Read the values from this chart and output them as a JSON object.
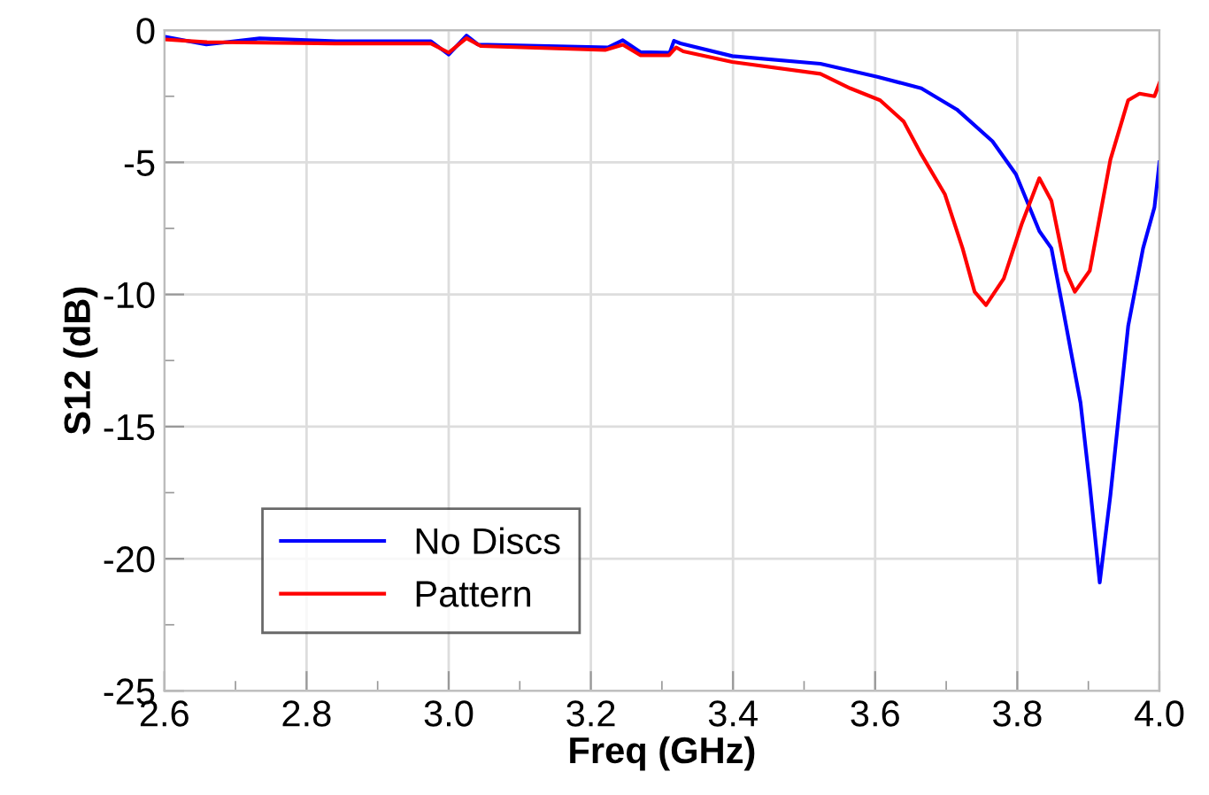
{
  "chart_data": {
    "type": "line",
    "xlabel": "Freq (GHz)",
    "ylabel": "S12 (dB)",
    "xlim": [
      2.6,
      4.0
    ],
    "ylim": [
      -25,
      0
    ],
    "xticks": [
      {
        "value": 2.6,
        "label": "2.6"
      },
      {
        "value": 2.8,
        "label": "2.8"
      },
      {
        "value": 3.0,
        "label": "3.0"
      },
      {
        "value": 3.2,
        "label": "3.2"
      },
      {
        "value": 3.4,
        "label": "3.4"
      },
      {
        "value": 3.6,
        "label": "3.6"
      },
      {
        "value": 3.8,
        "label": "3.8"
      },
      {
        "value": 4.0,
        "label": "4.0"
      }
    ],
    "yticks": [
      -25,
      -20,
      -15,
      -10,
      -5,
      0
    ],
    "grid": true,
    "legend": "bottom left",
    "marker": "none",
    "line_style": "solid",
    "series": [
      {
        "name": "No Discs",
        "color": "#0000ff",
        "x": [
          2.601,
          2.659,
          2.734,
          2.842,
          2.975,
          3.0,
          3.025,
          3.041,
          3.224,
          3.245,
          3.27,
          3.311,
          3.317,
          3.326,
          3.399,
          3.523,
          3.603,
          3.665,
          3.715,
          3.765,
          3.798,
          3.831,
          3.848,
          3.864,
          3.889,
          3.902,
          3.916,
          3.931,
          3.956,
          3.977,
          3.993,
          4.0
        ],
        "values": [
          -0.25,
          -0.54,
          -0.31,
          -0.42,
          -0.42,
          -0.92,
          -0.2,
          -0.54,
          -0.65,
          -0.38,
          -0.83,
          -0.85,
          -0.4,
          -0.5,
          -0.98,
          -1.27,
          -1.76,
          -2.2,
          -3.0,
          -4.2,
          -5.45,
          -7.6,
          -8.25,
          -10.5,
          -14.1,
          -17.2,
          -20.9,
          -17.6,
          -11.2,
          -8.25,
          -6.7,
          -5.0
        ]
      },
      {
        "name": "Pattern",
        "color": "#ff0000",
        "x": [
          2.6,
          2.66,
          2.84,
          2.975,
          3.0,
          3.025,
          3.045,
          3.22,
          3.245,
          3.27,
          3.31,
          3.32,
          3.33,
          3.399,
          3.523,
          3.565,
          3.607,
          3.64,
          3.665,
          3.698,
          3.723,
          3.74,
          3.756,
          3.781,
          3.806,
          3.831,
          3.848,
          3.868,
          3.881,
          3.902,
          3.931,
          3.956,
          3.972,
          3.993,
          4.0
        ],
        "values": [
          -0.35,
          -0.45,
          -0.5,
          -0.5,
          -0.85,
          -0.3,
          -0.6,
          -0.75,
          -0.55,
          -0.95,
          -0.95,
          -0.65,
          -0.8,
          -1.2,
          -1.65,
          -2.2,
          -2.65,
          -3.45,
          -4.7,
          -6.2,
          -8.25,
          -9.9,
          -10.4,
          -9.4,
          -7.35,
          -5.6,
          -6.45,
          -9.1,
          -9.9,
          -9.1,
          -4.9,
          -2.65,
          -2.4,
          -2.5,
          -2.0
        ]
      }
    ]
  }
}
